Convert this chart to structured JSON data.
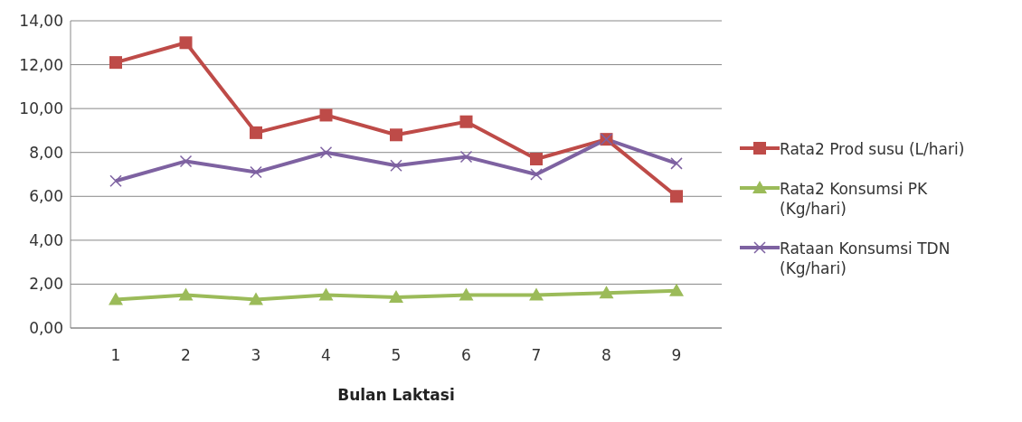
{
  "chart_data": {
    "type": "line",
    "xlabel": "Bulan Laktasi",
    "categories": [
      "1",
      "2",
      "3",
      "4",
      "5",
      "6",
      "7",
      "8",
      "9"
    ],
    "series": [
      {
        "name": "Rata2 Prod susu (L/hari)",
        "color": "#be4b48",
        "marker": "square",
        "values": [
          12.1,
          13.0,
          8.9,
          9.7,
          8.8,
          9.4,
          7.7,
          8.6,
          6.0
        ]
      },
      {
        "name": "Rata2 Konsumsi PK (Kg/hari)",
        "color": "#9bbb59",
        "marker": "triangle",
        "values": [
          1.3,
          1.5,
          1.3,
          1.5,
          1.4,
          1.5,
          1.5,
          1.6,
          1.7
        ]
      },
      {
        "name": "Rataan Konsumsi TDN (Kg/hari)",
        "color": "#7e62a1",
        "marker": "cross",
        "values": [
          6.7,
          7.6,
          7.1,
          8.0,
          7.4,
          7.8,
          7.0,
          8.6,
          7.5
        ]
      }
    ],
    "ylim": [
      0,
      14
    ],
    "yticks": [
      {
        "value": 0,
        "label": "0,00"
      },
      {
        "value": 2,
        "label": "2,00"
      },
      {
        "value": 4,
        "label": "4,00"
      },
      {
        "value": 6,
        "label": "6,00"
      },
      {
        "value": 8,
        "label": "8,00"
      },
      {
        "value": 10,
        "label": "10,00"
      },
      {
        "value": 12,
        "label": "12,00"
      },
      {
        "value": 14,
        "label": "14,00"
      }
    ],
    "grid": "y",
    "legend": "right"
  }
}
